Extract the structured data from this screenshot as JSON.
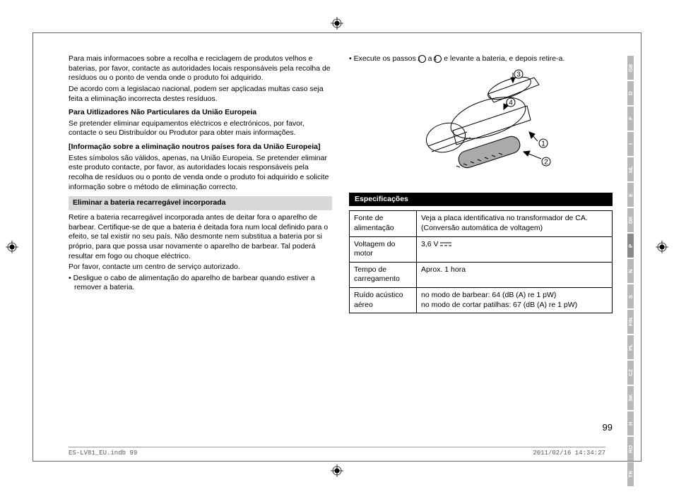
{
  "left_col": {
    "p1": "Para mais informacoes sobre a recolha e reciclagem de produtos velhos e baterias, por favor, contacte as autoridades locais responsáveis pela recolha de resíduos ou o ponto de venda onde o produto foi adquirido.",
    "p2": "De acordo com a legislacao nacional, podem ser apçlicadas multas caso seja feita a eliminação incorrecta destes resíduos.",
    "h1": "Para Uitlizadores Não Particulares da União Europeia",
    "p3": "Se pretender eliminar equipamentos eléctricos e electrónicos, por favor, contacte o seu Distribuídor ou Produtor para obter mais informações.",
    "h2": "[Informação sobre a eliminação noutros países fora da União Europeia]",
    "p4": "Estes símbolos são válidos, apenas, na União Europeia. Se pretender eliminar este produto contacte, por favor, as autoridades locais responsáveis pela recolha de resíduos ou o ponto de venda onde o produto foi adquirido e solicite informação sobre o método de eliminação correcto.",
    "sh1": "Eliminar a bateria recarregável incorporada",
    "p5": "Retire a bateria recarregável incorporada antes de deitar fora o aparelho de barbear. Certifique-se de que a bateria é deitada fora num local definido para o efeito, se tal existir no seu país. Não desmonte nem substitua a bateria por si próprio, para que possa usar novamente o aparelho de barbear. Tal poderá resultar em fogo ou choque eléctrico.",
    "p6": "Por favor, contacte um centro de serviço autorizado.",
    "b1": "• Desligue o cabo de alimentação do aparelho de barbear quando estiver a remover a bateria."
  },
  "right_col": {
    "b1a": "• Execute os passos ",
    "b1b": " a ",
    "b1c": " e levante a bateria, e depois retire-a.",
    "spec_hdr": "Especificações",
    "table": {
      "r1k": "Fonte de alimentação",
      "r1v": "Veja a placa identificativa no transformador de CA.\n(Conversão automática de voltagem)",
      "r2k": "Voltagem do motor",
      "r2v": "3,6 V",
      "r3k": "Tempo de carregamento",
      "r3v": "Aprox. 1 hora",
      "r4k": "Ruído acústico aéreo",
      "r4v": "no modo de barbear: 64 (dB (A) re 1 pW)\nno modo de cortar patilhas: 67 (dB (A) re 1 pW)"
    }
  },
  "langs": [
    "GB",
    "D",
    "F",
    "I",
    "NL",
    "E",
    "DK",
    "P",
    "N",
    "S",
    "FIN",
    "PL",
    "CZ",
    "SK",
    "H",
    "RO",
    "TR"
  ],
  "active_lang": "P",
  "page_num": "99",
  "footer_left": "ES-LV81_EU.indb   99",
  "footer_right": "2011/02/16   14:34:27"
}
